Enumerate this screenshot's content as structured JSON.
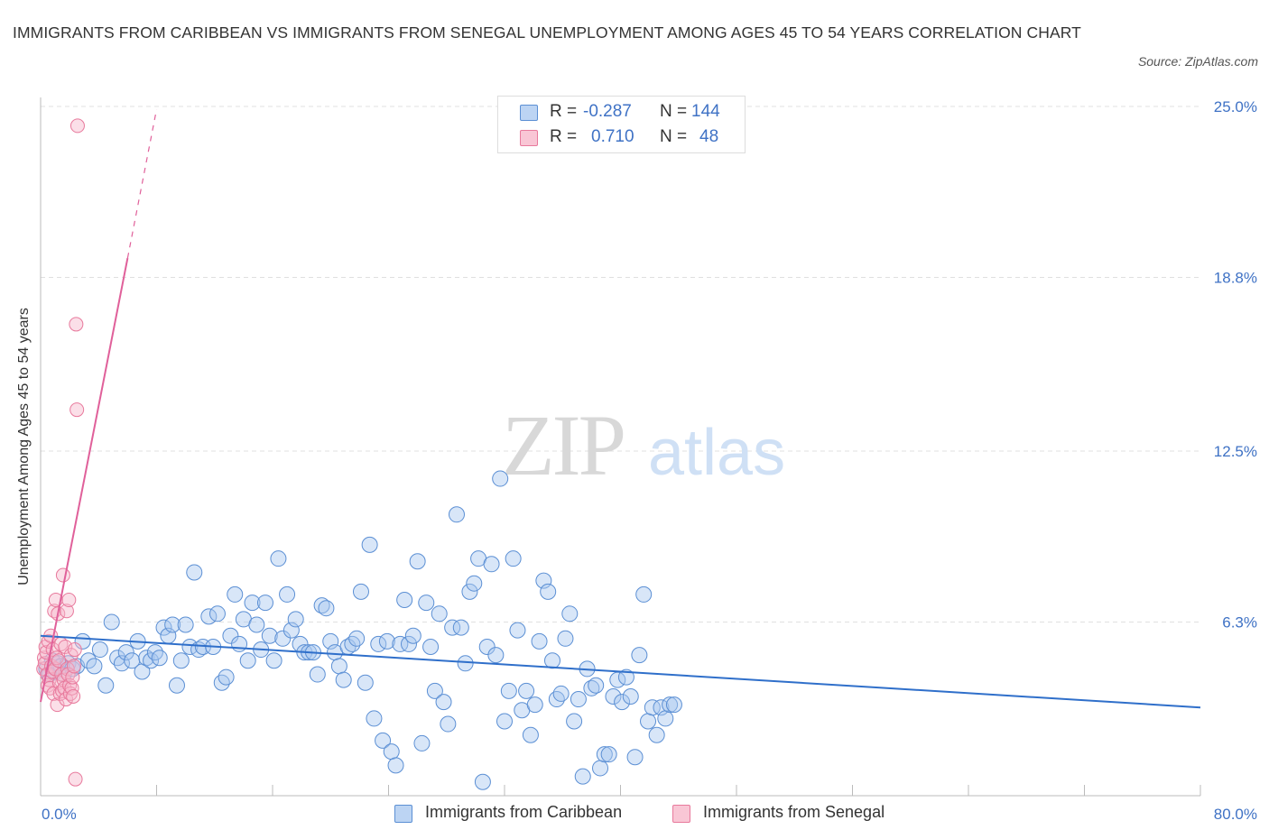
{
  "title": "IMMIGRANTS FROM CARIBBEAN VS IMMIGRANTS FROM SENEGAL UNEMPLOYMENT AMONG AGES 45 TO 54 YEARS CORRELATION CHART",
  "source": "Source: ZipAtlas.com",
  "watermark": {
    "zip": "ZIP",
    "atlas": "atlas"
  },
  "legend_top": {
    "rows": [
      {
        "r_label": "R =",
        "r_value": "-0.287",
        "n_label": "N =",
        "n_value": "144"
      },
      {
        "r_label": "R =",
        "r_value": "0.710",
        "n_label": "N =",
        "n_value": "48"
      }
    ]
  },
  "colors": {
    "caribbean_fill": "#a8c8f0",
    "caribbean_stroke": "#5b8fd4",
    "caribbean_line": "#2f6fca",
    "senegal_fill": "#f7b8cb",
    "senegal_stroke": "#e8799c",
    "senegal_line": "#e0609a",
    "tick_label": "#3f72c5",
    "grid": "#e0e0e0"
  },
  "chart_data": {
    "type": "scatter",
    "title": "IMMIGRANTS FROM CARIBBEAN VS IMMIGRANTS FROM SENEGAL UNEMPLOYMENT AMONG AGES 45 TO 54 YEARS CORRELATION CHART",
    "xlabel": "",
    "ylabel": "Unemployment Among Ages 45 to 54 years",
    "xlim": [
      0,
      80
    ],
    "ylim": [
      0,
      25
    ],
    "x_tick_labels": [
      "0.0%",
      "80.0%"
    ],
    "y_ticks": [
      6.3,
      12.5,
      18.8,
      25.0
    ],
    "y_tick_labels": [
      "6.3%",
      "12.5%",
      "18.8%",
      "25.0%"
    ],
    "grid": true,
    "legend_position": "top-center",
    "series": [
      {
        "name": "Immigrants from Caribbean",
        "r": -0.287,
        "n": 144,
        "trend": {
          "x": [
            0,
            80
          ],
          "y": [
            5.8,
            3.2
          ]
        },
        "points": [
          [
            0.4,
            4.6
          ],
          [
            0.6,
            4.4
          ],
          [
            0.8,
            4.9
          ],
          [
            1.0,
            4.5
          ],
          [
            1.2,
            4.8
          ],
          [
            1.4,
            4.7
          ],
          [
            1.6,
            4.4
          ],
          [
            1.9,
            4.8
          ],
          [
            2.2,
            4.6
          ],
          [
            2.5,
            4.7
          ],
          [
            2.9,
            5.6
          ],
          [
            3.3,
            4.9
          ],
          [
            3.7,
            4.7
          ],
          [
            4.1,
            5.3
          ],
          [
            4.5,
            4.0
          ],
          [
            4.9,
            6.3
          ],
          [
            5.3,
            5.0
          ],
          [
            5.6,
            4.8
          ],
          [
            5.9,
            5.2
          ],
          [
            6.3,
            4.9
          ],
          [
            6.7,
            5.6
          ],
          [
            7.0,
            4.5
          ],
          [
            7.3,
            5.0
          ],
          [
            7.6,
            4.9
          ],
          [
            7.9,
            5.2
          ],
          [
            8.2,
            5.0
          ],
          [
            8.5,
            6.1
          ],
          [
            8.8,
            5.8
          ],
          [
            9.1,
            6.2
          ],
          [
            9.4,
            4.0
          ],
          [
            9.7,
            4.9
          ],
          [
            10.0,
            6.2
          ],
          [
            10.3,
            5.4
          ],
          [
            10.6,
            8.1
          ],
          [
            10.9,
            5.3
          ],
          [
            11.2,
            5.4
          ],
          [
            11.6,
            6.5
          ],
          [
            11.9,
            5.4
          ],
          [
            12.2,
            6.6
          ],
          [
            12.5,
            4.1
          ],
          [
            12.8,
            4.3
          ],
          [
            13.1,
            5.8
          ],
          [
            13.4,
            7.3
          ],
          [
            13.7,
            5.5
          ],
          [
            14.0,
            6.4
          ],
          [
            14.3,
            4.9
          ],
          [
            14.6,
            7.0
          ],
          [
            14.9,
            6.2
          ],
          [
            15.2,
            5.3
          ],
          [
            15.5,
            7.0
          ],
          [
            15.8,
            5.8
          ],
          [
            16.1,
            4.9
          ],
          [
            16.4,
            8.6
          ],
          [
            16.7,
            5.7
          ],
          [
            17.0,
            7.3
          ],
          [
            17.3,
            6.0
          ],
          [
            17.6,
            6.4
          ],
          [
            17.9,
            5.5
          ],
          [
            18.2,
            5.2
          ],
          [
            18.5,
            5.2
          ],
          [
            18.8,
            5.2
          ],
          [
            19.1,
            4.4
          ],
          [
            19.4,
            6.9
          ],
          [
            19.7,
            6.8
          ],
          [
            20.0,
            5.6
          ],
          [
            20.3,
            5.2
          ],
          [
            20.6,
            4.7
          ],
          [
            20.9,
            4.2
          ],
          [
            21.2,
            5.4
          ],
          [
            21.5,
            5.5
          ],
          [
            21.8,
            5.7
          ],
          [
            22.1,
            7.4
          ],
          [
            22.4,
            4.1
          ],
          [
            22.7,
            9.1
          ],
          [
            23.0,
            2.8
          ],
          [
            23.3,
            5.5
          ],
          [
            23.6,
            2.0
          ],
          [
            23.9,
            5.6
          ],
          [
            24.2,
            1.6
          ],
          [
            24.5,
            1.1
          ],
          [
            24.8,
            5.5
          ],
          [
            25.1,
            7.1
          ],
          [
            25.4,
            5.5
          ],
          [
            25.7,
            5.8
          ],
          [
            26.0,
            8.5
          ],
          [
            26.3,
            1.9
          ],
          [
            26.6,
            7.0
          ],
          [
            26.9,
            5.4
          ],
          [
            27.2,
            3.8
          ],
          [
            27.5,
            6.6
          ],
          [
            27.8,
            3.4
          ],
          [
            28.1,
            2.6
          ],
          [
            28.4,
            6.1
          ],
          [
            28.7,
            10.2
          ],
          [
            29.0,
            6.1
          ],
          [
            29.3,
            4.8
          ],
          [
            29.6,
            7.4
          ],
          [
            29.9,
            7.7
          ],
          [
            30.2,
            8.6
          ],
          [
            30.5,
            0.5
          ],
          [
            30.8,
            5.4
          ],
          [
            31.1,
            8.4
          ],
          [
            31.4,
            5.1
          ],
          [
            31.7,
            11.5
          ],
          [
            32.0,
            2.7
          ],
          [
            32.3,
            3.8
          ],
          [
            32.6,
            8.6
          ],
          [
            32.9,
            6.0
          ],
          [
            33.2,
            3.1
          ],
          [
            33.5,
            3.8
          ],
          [
            33.8,
            2.2
          ],
          [
            34.1,
            3.3
          ],
          [
            34.4,
            5.6
          ],
          [
            34.7,
            7.8
          ],
          [
            35.0,
            7.4
          ],
          [
            35.3,
            4.9
          ],
          [
            35.6,
            3.5
          ],
          [
            35.9,
            3.7
          ],
          [
            36.2,
            5.7
          ],
          [
            36.5,
            6.6
          ],
          [
            36.8,
            2.7
          ],
          [
            37.1,
            3.5
          ],
          [
            37.4,
            0.7
          ],
          [
            37.7,
            4.6
          ],
          [
            38.0,
            3.9
          ],
          [
            38.3,
            4.0
          ],
          [
            38.6,
            1.0
          ],
          [
            38.9,
            1.5
          ],
          [
            39.2,
            1.5
          ],
          [
            39.5,
            3.6
          ],
          [
            39.8,
            4.2
          ],
          [
            40.1,
            3.4
          ],
          [
            40.4,
            4.3
          ],
          [
            40.7,
            3.6
          ],
          [
            41.0,
            1.4
          ],
          [
            41.3,
            5.1
          ],
          [
            41.6,
            7.3
          ],
          [
            41.9,
            2.7
          ],
          [
            42.2,
            3.2
          ],
          [
            42.5,
            2.2
          ],
          [
            42.8,
            3.2
          ],
          [
            43.1,
            2.8
          ],
          [
            43.4,
            3.3
          ],
          [
            43.7,
            3.3
          ]
        ]
      },
      {
        "name": "Immigrants from Senegal",
        "r": 0.71,
        "n": 48,
        "trend": {
          "x": [
            0.0,
            6.0
          ],
          "y": [
            3.4,
            19.5
          ]
        },
        "trend_dashed": {
          "x": [
            6.0,
            8.0
          ],
          "y": [
            19.5,
            24.9
          ]
        },
        "points": [
          [
            0.2,
            4.6
          ],
          [
            0.25,
            5.0
          ],
          [
            0.3,
            4.8
          ],
          [
            0.35,
            5.4
          ],
          [
            0.4,
            5.2
          ],
          [
            0.45,
            4.4
          ],
          [
            0.5,
            4.0
          ],
          [
            0.55,
            5.6
          ],
          [
            0.6,
            4.2
          ],
          [
            0.65,
            3.9
          ],
          [
            0.7,
            5.8
          ],
          [
            0.75,
            4.7
          ],
          [
            0.8,
            4.5
          ],
          [
            0.85,
            5.3
          ],
          [
            0.9,
            3.7
          ],
          [
            0.95,
            6.7
          ],
          [
            1.0,
            4.6
          ],
          [
            1.05,
            7.1
          ],
          [
            1.1,
            5.0
          ],
          [
            1.15,
            3.3
          ],
          [
            1.2,
            6.6
          ],
          [
            1.25,
            4.9
          ],
          [
            1.3,
            4.1
          ],
          [
            1.35,
            3.7
          ],
          [
            1.4,
            5.5
          ],
          [
            1.45,
            4.4
          ],
          [
            1.5,
            3.8
          ],
          [
            1.55,
            8.0
          ],
          [
            1.6,
            4.2
          ],
          [
            1.65,
            3.9
          ],
          [
            1.7,
            5.4
          ],
          [
            1.75,
            3.5
          ],
          [
            1.8,
            6.7
          ],
          [
            1.85,
            4.6
          ],
          [
            1.9,
            4.4
          ],
          [
            1.95,
            7.1
          ],
          [
            2.0,
            4.0
          ],
          [
            2.05,
            3.7
          ],
          [
            2.1,
            5.1
          ],
          [
            2.15,
            3.9
          ],
          [
            2.2,
            4.3
          ],
          [
            2.25,
            3.6
          ],
          [
            2.3,
            4.7
          ],
          [
            2.35,
            5.3
          ],
          [
            2.4,
            0.6
          ],
          [
            2.45,
            17.1
          ],
          [
            2.5,
            14.0
          ],
          [
            2.55,
            24.3
          ]
        ]
      }
    ]
  },
  "bottom_legend": {
    "caribbean": "Immigrants from Caribbean",
    "senegal": "Immigrants from Senegal"
  }
}
